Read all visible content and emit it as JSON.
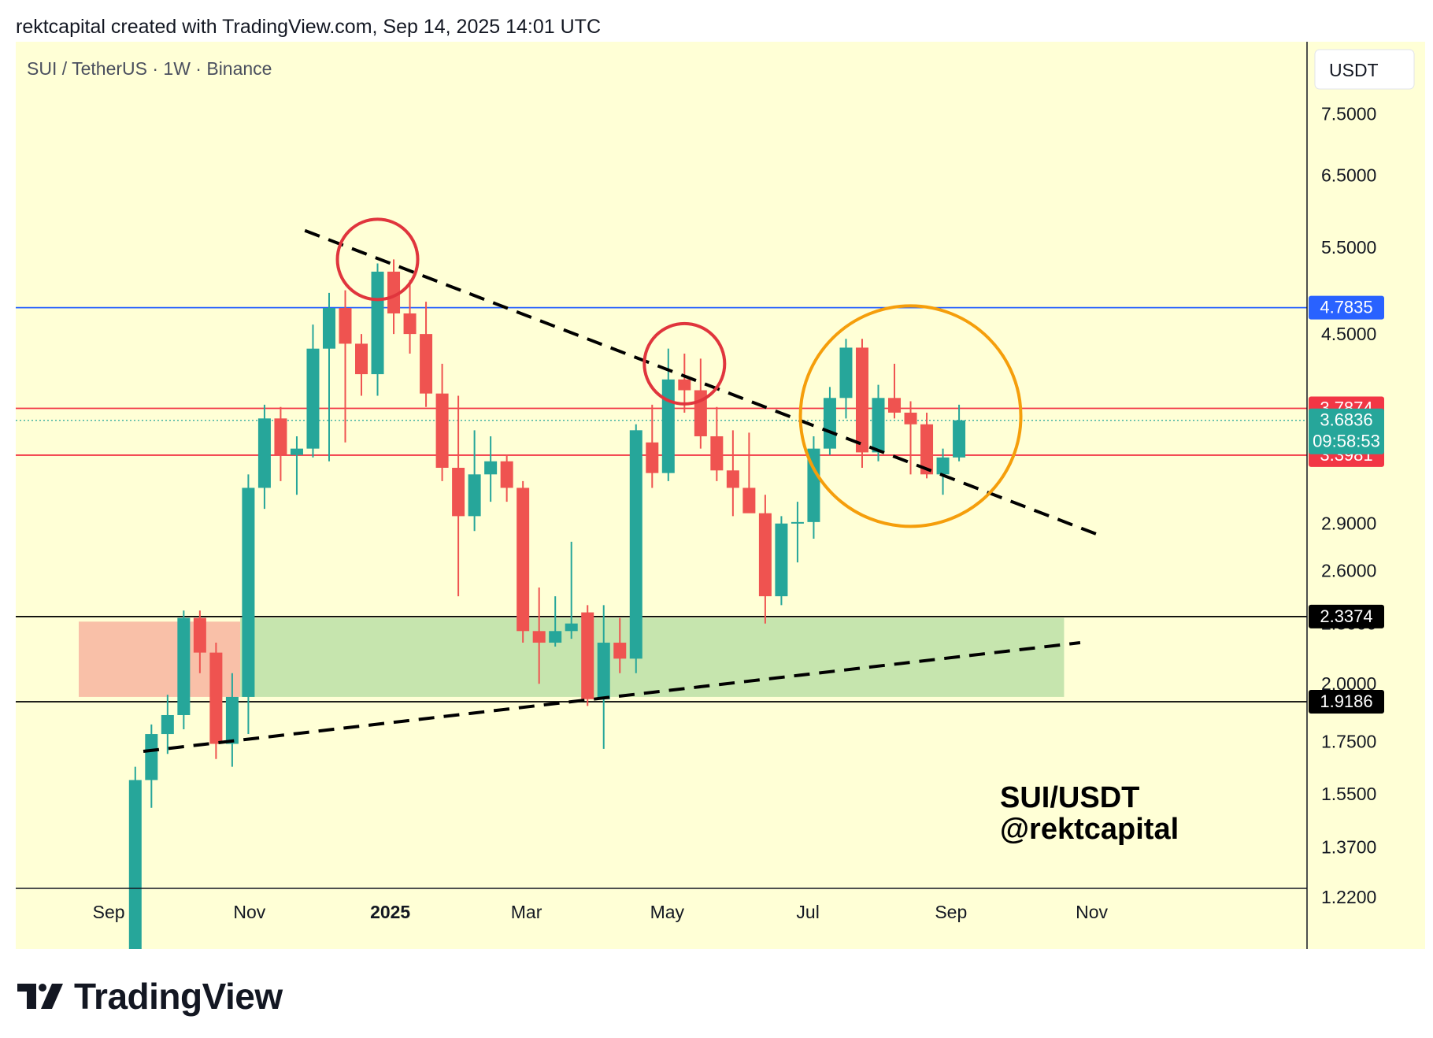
{
  "header": {
    "attribution": "rektcapital created with TradingView.com, Sep 14, 2025 14:01 UTC"
  },
  "footer": {
    "logo_text": "TradingView"
  },
  "chart_data": {
    "type": "candlestick",
    "symbol_title": "SUI / TetherUS · 1W · Binance",
    "currency": "USDT",
    "watermark": [
      "SUI/USDT",
      "@rektcapital"
    ],
    "y_scale": "log",
    "ylim": [
      1.2,
      8.0
    ],
    "y_ticks": [
      {
        "value": 7.5,
        "label": "7.5000"
      },
      {
        "value": 6.5,
        "label": "6.5000"
      },
      {
        "value": 5.5,
        "label": "5.5000"
      },
      {
        "value": 4.5,
        "label": "4.5000"
      },
      {
        "value": 2.9,
        "label": "2.9000"
      },
      {
        "value": 2.6,
        "label": "2.6000"
      },
      {
        "value": 2.3,
        "label": "2.3000"
      },
      {
        "value": 2.0,
        "label": "2.0000"
      },
      {
        "value": 1.75,
        "label": "1.7500"
      },
      {
        "value": 1.55,
        "label": "1.5500"
      },
      {
        "value": 1.37,
        "label": "1.3700"
      },
      {
        "value": 1.22,
        "label": "1.2200"
      }
    ],
    "x_range": [
      "2024-08-19",
      "2025-11-24"
    ],
    "x_ticks": [
      {
        "date": "2024-09-01",
        "label": "Sep",
        "bold": false
      },
      {
        "date": "2024-11-01",
        "label": "Nov",
        "bold": false
      },
      {
        "date": "2025-01-01",
        "label": "2025",
        "bold": true
      },
      {
        "date": "2025-03-01",
        "label": "Mar",
        "bold": false
      },
      {
        "date": "2025-05-01",
        "label": "May",
        "bold": false
      },
      {
        "date": "2025-07-01",
        "label": "Jul",
        "bold": false
      },
      {
        "date": "2025-09-01",
        "label": "Sep",
        "bold": false
      },
      {
        "date": "2025-11-01",
        "label": "Nov",
        "bold": false
      }
    ],
    "candles": [
      {
        "date": "2024-09-09",
        "open": 1.05,
        "high": 1.65,
        "low": 1.0,
        "close": 1.6
      },
      {
        "date": "2024-09-16",
        "open": 1.6,
        "high": 1.82,
        "low": 1.5,
        "close": 1.78
      },
      {
        "date": "2024-09-23",
        "open": 1.78,
        "high": 1.95,
        "low": 1.7,
        "close": 1.86
      },
      {
        "date": "2024-09-30",
        "open": 1.86,
        "high": 2.37,
        "low": 1.8,
        "close": 2.33
      },
      {
        "date": "2024-10-07",
        "open": 2.33,
        "high": 2.37,
        "low": 2.05,
        "close": 2.15
      },
      {
        "date": "2024-10-14",
        "open": 2.15,
        "high": 2.2,
        "low": 1.68,
        "close": 1.74
      },
      {
        "date": "2024-10-21",
        "open": 1.74,
        "high": 2.05,
        "low": 1.65,
        "close": 1.94
      },
      {
        "date": "2024-10-28",
        "open": 1.94,
        "high": 3.25,
        "low": 1.78,
        "close": 3.15
      },
      {
        "date": "2024-11-04",
        "open": 3.15,
        "high": 3.82,
        "low": 3.0,
        "close": 3.7
      },
      {
        "date": "2024-11-11",
        "open": 3.7,
        "high": 3.8,
        "low": 3.2,
        "close": 3.4
      },
      {
        "date": "2024-11-18",
        "open": 3.4,
        "high": 3.55,
        "low": 3.1,
        "close": 3.45
      },
      {
        "date": "2024-11-25",
        "open": 3.45,
        "high": 4.6,
        "low": 3.38,
        "close": 4.35
      },
      {
        "date": "2024-12-02",
        "open": 4.35,
        "high": 4.95,
        "low": 3.35,
        "close": 4.78
      },
      {
        "date": "2024-12-09",
        "open": 4.78,
        "high": 4.98,
        "low": 3.5,
        "close": 4.4
      },
      {
        "date": "2024-12-16",
        "open": 4.4,
        "high": 4.5,
        "low": 3.9,
        "close": 4.1
      },
      {
        "date": "2024-12-23",
        "open": 4.1,
        "high": 5.3,
        "low": 3.9,
        "close": 5.2
      },
      {
        "date": "2024-12-30",
        "open": 5.2,
        "high": 5.35,
        "low": 4.5,
        "close": 4.72
      },
      {
        "date": "2025-01-06",
        "open": 4.72,
        "high": 5.1,
        "low": 4.3,
        "close": 4.5
      },
      {
        "date": "2025-01-13",
        "open": 4.5,
        "high": 4.85,
        "low": 3.8,
        "close": 3.92
      },
      {
        "date": "2025-01-20",
        "open": 3.92,
        "high": 4.2,
        "low": 3.2,
        "close": 3.3
      },
      {
        "date": "2025-01-27",
        "open": 3.3,
        "high": 3.9,
        "low": 2.45,
        "close": 2.95
      },
      {
        "date": "2025-02-03",
        "open": 2.95,
        "high": 3.6,
        "low": 2.85,
        "close": 3.25
      },
      {
        "date": "2025-02-10",
        "open": 3.25,
        "high": 3.55,
        "low": 3.05,
        "close": 3.35
      },
      {
        "date": "2025-02-17",
        "open": 3.35,
        "high": 3.4,
        "low": 3.05,
        "close": 3.15
      },
      {
        "date": "2025-02-24",
        "open": 3.15,
        "high": 3.2,
        "low": 2.2,
        "close": 2.26
      },
      {
        "date": "2025-03-03",
        "open": 2.26,
        "high": 2.5,
        "low": 2.0,
        "close": 2.2
      },
      {
        "date": "2025-03-10",
        "open": 2.2,
        "high": 2.45,
        "low": 2.18,
        "close": 2.26
      },
      {
        "date": "2025-03-17",
        "open": 2.26,
        "high": 2.78,
        "low": 2.22,
        "close": 2.3
      },
      {
        "date": "2025-03-24",
        "open": 2.36,
        "high": 2.4,
        "low": 1.9,
        "close": 1.93
      },
      {
        "date": "2025-03-31",
        "open": 1.93,
        "high": 2.4,
        "low": 1.72,
        "close": 2.2
      },
      {
        "date": "2025-04-07",
        "open": 2.2,
        "high": 2.33,
        "low": 2.05,
        "close": 2.12
      },
      {
        "date": "2025-04-14",
        "open": 2.12,
        "high": 3.65,
        "low": 2.05,
        "close": 3.6
      },
      {
        "date": "2025-04-21",
        "open": 3.5,
        "high": 3.82,
        "low": 3.15,
        "close": 3.26
      },
      {
        "date": "2025-04-28",
        "open": 3.26,
        "high": 4.35,
        "low": 3.2,
        "close": 4.05
      },
      {
        "date": "2025-05-05",
        "open": 4.05,
        "high": 4.3,
        "low": 3.75,
        "close": 3.95
      },
      {
        "date": "2025-05-12",
        "open": 3.95,
        "high": 4.25,
        "low": 3.45,
        "close": 3.55
      },
      {
        "date": "2025-05-19",
        "open": 3.55,
        "high": 3.8,
        "low": 3.2,
        "close": 3.28
      },
      {
        "date": "2025-05-26",
        "open": 3.28,
        "high": 3.6,
        "low": 2.95,
        "close": 3.15
      },
      {
        "date": "2025-06-02",
        "open": 3.15,
        "high": 3.58,
        "low": 2.98,
        "close": 2.97
      },
      {
        "date": "2025-06-09",
        "open": 2.97,
        "high": 3.1,
        "low": 2.3,
        "close": 2.45
      },
      {
        "date": "2025-06-16",
        "open": 2.45,
        "high": 2.95,
        "low": 2.4,
        "close": 2.9
      },
      {
        "date": "2025-06-23",
        "open": 2.9,
        "high": 3.05,
        "low": 2.65,
        "close": 2.91
      },
      {
        "date": "2025-06-30",
        "open": 2.91,
        "high": 3.55,
        "low": 2.8,
        "close": 3.45
      },
      {
        "date": "2025-07-07",
        "open": 3.45,
        "high": 3.98,
        "low": 3.4,
        "close": 3.88
      },
      {
        "date": "2025-07-14",
        "open": 3.88,
        "high": 4.45,
        "low": 3.7,
        "close": 4.36
      },
      {
        "date": "2025-07-21",
        "open": 4.36,
        "high": 4.45,
        "low": 3.3,
        "close": 3.42
      },
      {
        "date": "2025-07-28",
        "open": 3.42,
        "high": 4.0,
        "low": 3.35,
        "close": 3.88
      },
      {
        "date": "2025-08-04",
        "open": 3.88,
        "high": 4.2,
        "low": 3.7,
        "close": 3.75
      },
      {
        "date": "2025-08-11",
        "open": 3.75,
        "high": 3.85,
        "low": 3.25,
        "close": 3.65
      },
      {
        "date": "2025-08-18",
        "open": 3.65,
        "high": 3.75,
        "low": 3.22,
        "close": 3.25
      },
      {
        "date": "2025-08-25",
        "open": 3.25,
        "high": 3.45,
        "low": 3.1,
        "close": 3.38
      },
      {
        "date": "2025-09-01",
        "open": 3.38,
        "high": 3.82,
        "low": 3.35,
        "close": 3.6836
      }
    ],
    "price_lines": [
      {
        "value": 4.7835,
        "label": "4.7835",
        "color": "#2962ff"
      },
      {
        "value": 3.7874,
        "label": "3.7874",
        "color": "#f23645"
      },
      {
        "value": 3.3981,
        "label": "3.3981",
        "color": "#f23645"
      },
      {
        "value": 2.3374,
        "label": "2.3374",
        "color": "#000000"
      },
      {
        "value": 1.9186,
        "label": "1.9186",
        "color": "#000000"
      }
    ],
    "last_price": {
      "value": 3.6836,
      "label": "3.6836",
      "countdown": "09:58:53",
      "color": "#26a69a"
    },
    "zones": [
      {
        "from_date": "2024-08-19",
        "to_date": "2024-10-28",
        "low": 1.94,
        "high": 2.31,
        "color": "#f9c0a8"
      },
      {
        "from_date": "2024-10-28",
        "to_date": "2025-10-20",
        "low": 1.94,
        "high": 2.33,
        "color": "#c6e5ae"
      }
    ],
    "trendlines": [
      {
        "x1": "2024-11-25",
        "y1": 5.72,
        "x2": "2025-11-03",
        "y2": 2.83,
        "color": "#000000",
        "dashed": true
      },
      {
        "x1": "2024-09-16",
        "y1": 1.71,
        "x2": "2025-10-27",
        "y2": 2.2,
        "color": "#000000",
        "dashed": true
      }
    ],
    "circles": [
      {
        "date": "2024-12-23",
        "price": 5.35,
        "color": "#e0353d"
      },
      {
        "date": "2025-05-05",
        "price": 4.2,
        "color": "#e0353d"
      },
      {
        "date": "2025-08-11",
        "price": 3.72,
        "color": "#f59e0b"
      }
    ],
    "colors": {
      "up": "#26a69a",
      "down": "#ef5350",
      "background": "#ffffd6",
      "grid": false
    }
  }
}
